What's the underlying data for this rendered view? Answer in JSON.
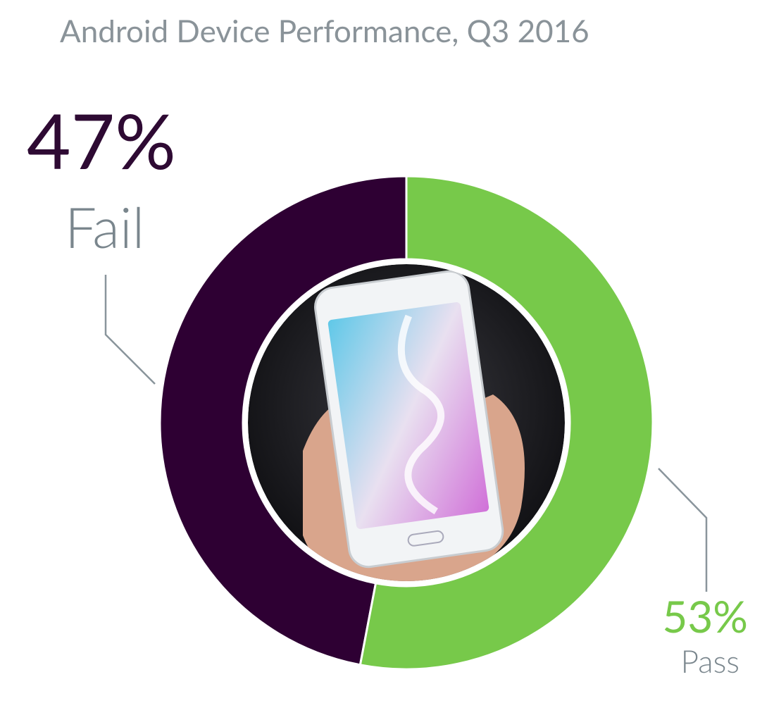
{
  "chart_data": {
    "type": "donut",
    "title": "Android Device Performance, Q3 2016",
    "categories": [
      "Fail",
      "Pass"
    ],
    "values": [
      47,
      53
    ],
    "value_labels": [
      "47%",
      "53%"
    ],
    "colors": [
      "#2e0033",
      "#77c94a"
    ]
  }
}
